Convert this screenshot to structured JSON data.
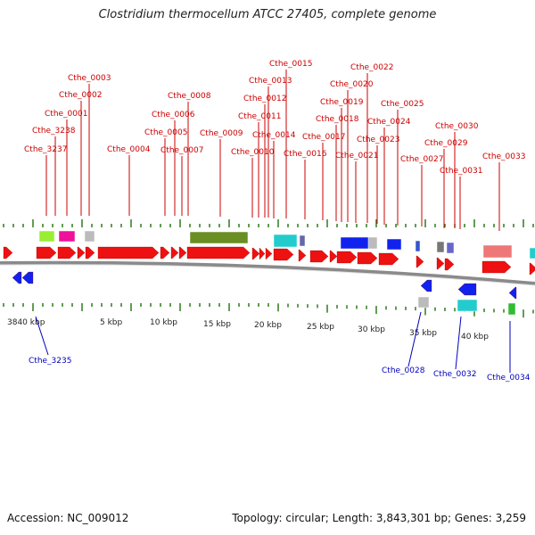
{
  "title": "Clostridium thermocellum ATCC 27405, complete genome",
  "accession": "Accession: NC_009012",
  "topology": "Topology: circular; Length: 3,843,301 bp; Genes: 3,259",
  "colors": {
    "backbone": "#8a8a8a",
    "red_gene": "#ee1111",
    "blue_gene": "#1122ee",
    "forward_label": "#cc0000",
    "reverse_label": "#0000bb",
    "tick": "#2f7a1e",
    "olive": "#6b8e23",
    "lime": "#99ee33",
    "magenta": "#ee1199",
    "cyan": "#22cccc",
    "salmon": "#ee7777",
    "grey": "#bbbbbb"
  },
  "scale_labels": [
    "3840 kbp",
    "5 kbp",
    "10 kbp",
    "15 kbp",
    "20 kbp",
    "25 kbp",
    "30 kbp",
    "35 kbp",
    "40 kbp"
  ],
  "forward_labels": [
    "Cthe_3237",
    "Cthe_3238",
    "Cthe_0001",
    "Cthe_0002",
    "Cthe_0003",
    "Cthe_0004",
    "Cthe_0005",
    "Cthe_0006",
    "Cthe_0007",
    "Cthe_0008",
    "Cthe_0009",
    "Cthe_0010",
    "Cthe_0011",
    "Cthe_0012",
    "Cthe_0013",
    "Cthe_0014",
    "Cthe_0015",
    "Cthe_0016",
    "Cthe_0017",
    "Cthe_0018",
    "Cthe_0019",
    "Cthe_0020",
    "Cthe_0021",
    "Cthe_0022",
    "Cthe_0023",
    "Cthe_0024",
    "Cthe_0025",
    "Cthe_0027",
    "Cthe_0029",
    "Cthe_0030",
    "Cthe_0031",
    "Cthe_0033"
  ],
  "reverse_labels": [
    "Cthe_3235",
    "Cthe_0028",
    "Cthe_0032",
    "Cthe_0034"
  ]
}
